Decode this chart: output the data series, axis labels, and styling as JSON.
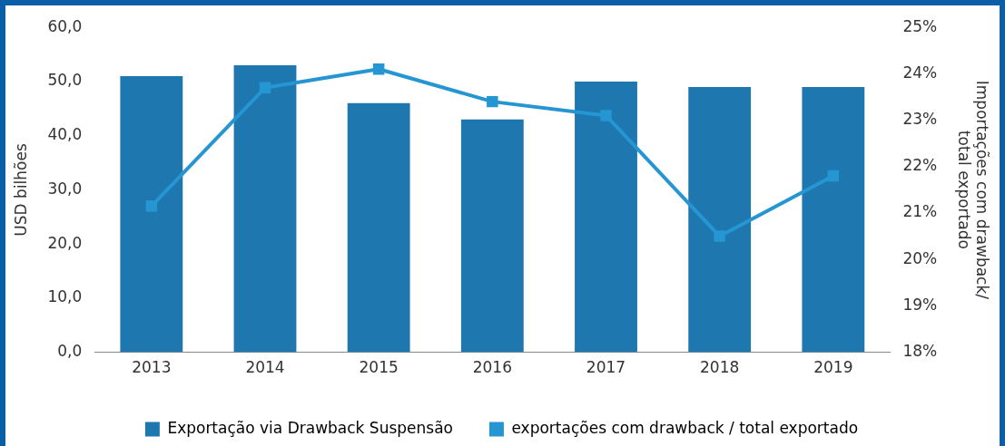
{
  "chart_data": {
    "type": "bar",
    "ylabel": "USD bilhões",
    "y2label": "Importações com drawback/ total exportado",
    "categories": [
      "2013",
      "2014",
      "2015",
      "2016",
      "2017",
      "2018",
      "2019"
    ],
    "series": [
      {
        "name": "Exportação via Drawback Suspensão",
        "color": "#1f77b0",
        "values": [
          51,
          53,
          46,
          43,
          50,
          49,
          49
        ]
      },
      {
        "name": "exportações com drawback / total exportado",
        "type": "line",
        "axis": "y2",
        "color": "#2596d2",
        "marker": "square",
        "values": [
          21.15,
          23.7,
          24.1,
          23.4,
          23.1,
          20.5,
          21.8
        ]
      }
    ],
    "ylim": [
      0,
      60
    ],
    "yticks": [
      {
        "value": 0,
        "label": "0,0"
      },
      {
        "value": 10,
        "label": "10,0"
      },
      {
        "value": 20,
        "label": "20,0"
      },
      {
        "value": 30,
        "label": "30,0"
      },
      {
        "value": 40,
        "label": "40,0"
      },
      {
        "value": 50,
        "label": "50,0"
      },
      {
        "value": 60,
        "label": "60,0"
      }
    ],
    "y2lim": [
      18,
      25
    ],
    "y2ticks": [
      {
        "value": 18,
        "label": "18%"
      },
      {
        "value": 19,
        "label": "19%"
      },
      {
        "value": 20,
        "label": "20%"
      },
      {
        "value": 21,
        "label": "21%"
      },
      {
        "value": 22,
        "label": "22%"
      },
      {
        "value": 23,
        "label": "23%"
      },
      {
        "value": 24,
        "label": "24%"
      },
      {
        "value": 25,
        "label": "25%"
      }
    ],
    "grid": false,
    "legend": "bottom"
  }
}
